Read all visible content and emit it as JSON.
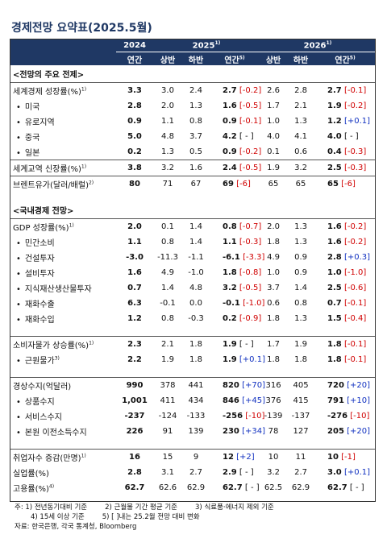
{
  "title": "경제전망 요약표(2025.5월)",
  "header": {
    "years": [
      {
        "label": "2024",
        "note": ""
      },
      {
        "label": "2025",
        "note": "1)"
      },
      {
        "label": "2026",
        "note": "1)"
      }
    ],
    "sub": [
      "연간",
      "상반",
      "하반",
      "연간",
      "상반",
      "하반",
      "연간"
    ],
    "annual_note": "5)"
  },
  "sections": [
    {
      "title": "<전망의 주요 전제>",
      "groups": [
        {
          "rows": [
            {
              "label": "세계경제 성장률(%)",
              "note": "1)",
              "bullet": false,
              "values": [
                "3.3",
                "3.0",
                "2.4",
                "2.7",
                "[-0.2]",
                "2.6",
                "2.8",
                "2.7",
                "[-0.1]"
              ]
            },
            {
              "label": "미국",
              "note": "",
              "bullet": true,
              "values": [
                "2.8",
                "2.0",
                "1.3",
                "1.6",
                "[-0.5]",
                "1.7",
                "2.1",
                "1.9",
                "[-0.2]"
              ]
            },
            {
              "label": "유로지역",
              "note": "",
              "bullet": true,
              "values": [
                "0.9",
                "1.1",
                "0.8",
                "0.9",
                "[-0.1]",
                "1.0",
                "1.3",
                "1.2",
                "[+0.1]"
              ]
            },
            {
              "label": "중국",
              "note": "",
              "bullet": true,
              "values": [
                "5.0",
                "4.8",
                "3.7",
                "4.2",
                "[ - ]",
                "4.0",
                "4.1",
                "4.0",
                "[ - ]"
              ]
            },
            {
              "label": "일본",
              "note": "",
              "bullet": true,
              "values": [
                "0.2",
                "1.3",
                "0.5",
                "0.9",
                "[-0.2]",
                "0.1",
                "0.6",
                "0.4",
                "[-0.3]"
              ]
            }
          ]
        },
        {
          "rows": [
            {
              "label": "세계교역 신장률(%)",
              "note": "1)",
              "bullet": false,
              "values": [
                "3.8",
                "3.2",
                "1.6",
                "2.4",
                "[-0.5]",
                "1.9",
                "3.2",
                "2.5",
                "[-0.3]"
              ]
            }
          ]
        },
        {
          "rows": [
            {
              "label": "브렌트유가(달러/배럴)",
              "note": "2)",
              "bullet": false,
              "values": [
                "80",
                "71",
                "67",
                "69",
                "[-6]",
                "65",
                "65",
                "65",
                "[-6]"
              ]
            }
          ]
        }
      ]
    },
    {
      "title": "<국내경제 전망>",
      "groups": [
        {
          "rows": [
            {
              "label": "GDP 성장률(%)",
              "note": "1)",
              "bullet": false,
              "values": [
                "2.0",
                "0.1",
                "1.4",
                "0.8",
                "[-0.7]",
                "2.0",
                "1.3",
                "1.6",
                "[-0.2]"
              ]
            },
            {
              "label": "민간소비",
              "note": "",
              "bullet": true,
              "values": [
                "1.1",
                "0.8",
                "1.4",
                "1.1",
                "[-0.3]",
                "1.8",
                "1.3",
                "1.6",
                "[-0.2]"
              ]
            },
            {
              "label": "건설투자",
              "note": "",
              "bullet": true,
              "values": [
                "-3.0",
                "-11.3",
                "-1.1",
                "-6.1",
                "[-3.3]",
                "4.9",
                "0.9",
                "2.8",
                "[+0.3]"
              ]
            },
            {
              "label": "설비투자",
              "note": "",
              "bullet": true,
              "values": [
                "1.6",
                "4.9",
                "-1.0",
                "1.8",
                "[-0.8]",
                "1.0",
                "0.9",
                "1.0",
                "[-1.0]"
              ]
            },
            {
              "label": "지식재산생산물투자",
              "note": "",
              "bullet": true,
              "values": [
                "0.7",
                "1.4",
                "4.8",
                "3.2",
                "[-0.5]",
                "3.7",
                "1.4",
                "2.5",
                "[-0.6]"
              ]
            },
            {
              "label": "재화수출",
              "note": "",
              "bullet": true,
              "values": [
                "6.3",
                "-0.1",
                "0.0",
                "-0.1",
                "[-1.0]",
                "0.6",
                "0.8",
                "0.7",
                "[-0.1]"
              ]
            },
            {
              "label": "재화수입",
              "note": "",
              "bullet": true,
              "values": [
                "1.2",
                "0.8",
                "-0.3",
                "0.2",
                "[-0.9]",
                "1.8",
                "1.3",
                "1.5",
                "[-0.4]"
              ]
            }
          ]
        },
        {
          "rows": [
            {
              "label": "소비자물가 상승률(%)",
              "note": "1)",
              "bullet": false,
              "values": [
                "2.3",
                "2.1",
                "1.8",
                "1.9",
                "[ - ]",
                "1.7",
                "1.9",
                "1.8",
                "[-0.1]"
              ]
            },
            {
              "label": "근원물가",
              "note": "3)",
              "bullet": true,
              "values": [
                "2.2",
                "1.9",
                "1.8",
                "1.9",
                "[+0.1]",
                "1.8",
                "1.8",
                "1.8",
                "[-0.1]"
              ]
            }
          ]
        },
        {
          "rows": [
            {
              "label": "경상수지(억달러)",
              "note": "",
              "bullet": false,
              "values": [
                "990",
                "378",
                "441",
                "820",
                "[+70]",
                "316",
                "405",
                "720",
                "[+20]"
              ]
            },
            {
              "label": "상품수지",
              "note": "",
              "bullet": true,
              "values": [
                "1,001",
                "411",
                "434",
                "846",
                "[+45]",
                "376",
                "415",
                "791",
                "[+10]"
              ]
            },
            {
              "label": "서비스수지",
              "note": "",
              "bullet": true,
              "values": [
                "-237",
                "-124",
                "-133",
                "-256",
                "[-10]",
                "-139",
                "-137",
                "-276",
                "[-10]"
              ]
            },
            {
              "label": "본원 이전소득수지",
              "note": "",
              "bullet": true,
              "values": [
                "226",
                "91",
                "139",
                "230",
                "[+34]",
                "78",
                "127",
                "205",
                "[+20]"
              ]
            }
          ]
        },
        {
          "rows": [
            {
              "label": "취업자수 증감(만명)",
              "note": "1)",
              "bullet": false,
              "values": [
                "16",
                "15",
                "9",
                "12",
                "[+2]",
                "10",
                "11",
                "10",
                "[-1]"
              ]
            },
            {
              "label": "실업률(%)",
              "note": "",
              "bullet": false,
              "values": [
                "2.8",
                "3.1",
                "2.7",
                "2.9",
                "[ - ]",
                "3.2",
                "2.7",
                "3.0",
                "[+0.1]"
              ]
            },
            {
              "label": "고용률(%)",
              "note": "4)",
              "bullet": false,
              "values": [
                "62.7",
                "62.6",
                "62.9",
                "62.7",
                "[ - ]",
                "62.5",
                "62.9",
                "62.7",
                "[ - ]"
              ]
            }
          ]
        }
      ]
    }
  ],
  "footnotes": {
    "prefix": "주:",
    "lines": [
      [
        "1) 전년동기대비 기준",
        "2) 근월물 기간 평균 기준",
        "3) 식료품·에너지 제외 기준"
      ],
      [
        "4) 15세 이상 기준",
        "5) [ ]내는 25.2월 전망 대비 변화"
      ]
    ],
    "source": "자료: 한국은행, 각국 통계청, Bloomberg"
  }
}
